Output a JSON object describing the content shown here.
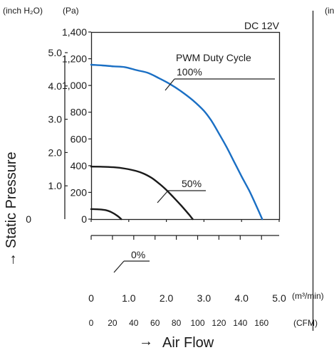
{
  "chart_data": {
    "type": "line",
    "title": "DC 12V",
    "legend_title": "PWM Duty Cycle",
    "ylabel": "Static Pressure",
    "ylabel_arrow": "→",
    "xlabel": "Air Flow",
    "xlabel_arrow": "→",
    "y_left_unit": "(inch H₂O)",
    "y_right_unit": "(Pa)",
    "x_top_unit": "(m³/min)",
    "x_bottom_unit": "(CFM)",
    "x_ticks": [
      "0",
      "1.0",
      "2.0",
      "3.0",
      "4.0",
      "5.0"
    ],
    "y_ticks_pa": [
      "0",
      "200",
      "400",
      "600",
      "800",
      "1,000",
      "1,200",
      "1,400"
    ],
    "y_ticks_inch": [
      "1.0",
      "2.0",
      "3.0",
      "4.0",
      "5.0"
    ],
    "cfm_ticks": [
      "0",
      "20",
      "40",
      "60",
      "80",
      "100",
      "120",
      "140",
      "160"
    ],
    "xlim": [
      0,
      5
    ],
    "ylim": [
      0,
      1400
    ],
    "series": [
      {
        "name": "100%",
        "color": "#1a6fc4",
        "x": [
          0,
          0.3,
          0.6,
          0.9,
          1.2,
          1.5,
          1.8,
          2.1,
          2.4,
          2.7,
          3.0,
          3.2,
          3.4,
          3.6,
          3.8,
          4.0,
          4.2,
          4.4,
          4.55
        ],
        "y": [
          1155,
          1150,
          1143,
          1137,
          1115,
          1095,
          1055,
          1010,
          955,
          890,
          810,
          735,
          640,
          540,
          430,
          320,
          215,
          95,
          0
        ]
      },
      {
        "name": "50%",
        "color": "#1a1a1a",
        "x": [
          0,
          0.3,
          0.6,
          0.9,
          1.2,
          1.4,
          1.6,
          1.8,
          2.0,
          2.2,
          2.4,
          2.6,
          2.7
        ],
        "y": [
          393,
          392,
          388,
          378,
          360,
          340,
          310,
          268,
          218,
          160,
          100,
          35,
          0
        ]
      },
      {
        "name": "0%",
        "color": "#1a1a1a",
        "x": [
          0,
          0.2,
          0.4,
          0.55,
          0.7,
          0.8
        ],
        "y": [
          75,
          73,
          66,
          50,
          24,
          0
        ]
      }
    ],
    "series_colors": [
      "#1a6fc4",
      "#1a1a1a",
      "#1a1a1a"
    ],
    "x_partial_label": "(in"
  }
}
